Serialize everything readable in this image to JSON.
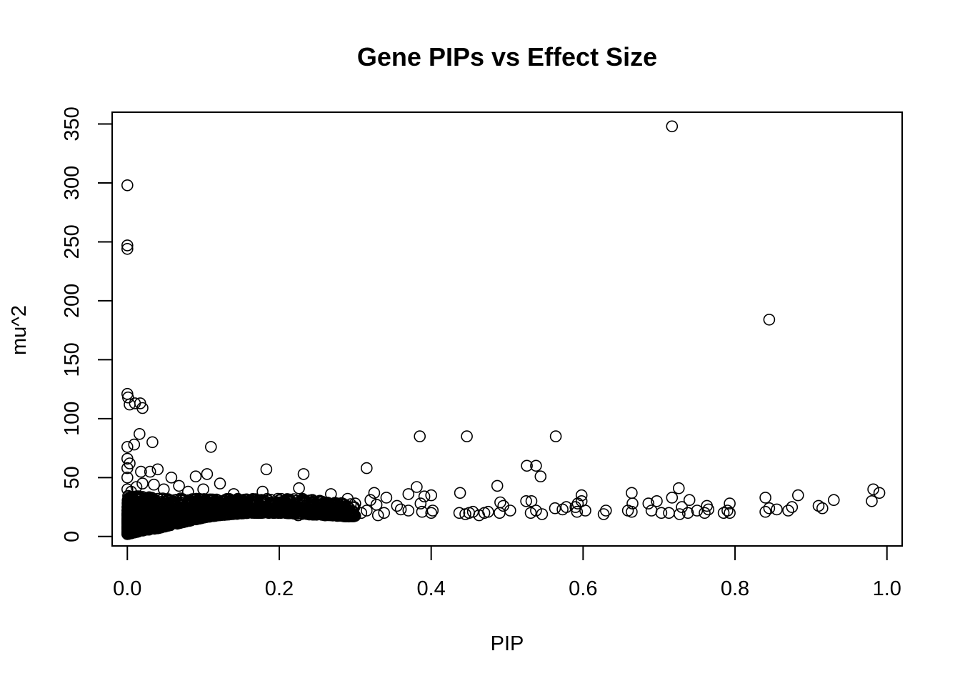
{
  "chart_data": {
    "type": "scatter",
    "title": "Gene PIPs vs Effect Size",
    "xlabel": "PIP",
    "ylabel": "mu^2",
    "xlim": [
      -0.02,
      1.02
    ],
    "ylim": [
      -8,
      360
    ],
    "x_ticks": [
      0.0,
      0.2,
      0.4,
      0.6,
      0.8,
      1.0
    ],
    "x_tick_labels": [
      "0.0",
      "0.2",
      "0.4",
      "0.6",
      "0.8",
      "1.0"
    ],
    "y_ticks": [
      0,
      50,
      100,
      150,
      200,
      250,
      300,
      350
    ],
    "y_tick_labels": [
      "0",
      "50",
      "100",
      "150",
      "200",
      "250",
      "300",
      "350"
    ],
    "grid": false,
    "legend": "none",
    "marker": "open-circle",
    "colors": {
      "marker": "#000000",
      "axis": "#000000",
      "background": "#ffffff"
    },
    "points": [
      [
        0.0,
        298
      ],
      [
        0.0,
        247
      ],
      [
        0.0,
        244
      ],
      [
        0.717,
        348
      ],
      [
        0.845,
        184
      ],
      [
        0.0,
        121
      ],
      [
        0.001,
        118
      ],
      [
        0.003,
        112
      ],
      [
        0.01,
        113
      ],
      [
        0.017,
        113
      ],
      [
        0.02,
        109
      ],
      [
        0.016,
        87
      ],
      [
        0.033,
        80
      ],
      [
        0.04,
        57
      ],
      [
        0.03,
        55
      ],
      [
        0.018,
        55
      ],
      [
        0.0,
        76
      ],
      [
        0.009,
        78
      ],
      [
        0.0,
        66
      ],
      [
        0.003,
        62
      ],
      [
        0.0,
        58
      ],
      [
        0.0,
        50
      ],
      [
        0.058,
        50
      ],
      [
        0.11,
        76
      ],
      [
        0.183,
        57
      ],
      [
        0.09,
        51
      ],
      [
        0.105,
        53
      ],
      [
        0.232,
        53
      ],
      [
        0.315,
        58
      ],
      [
        0.385,
        85
      ],
      [
        0.447,
        85
      ],
      [
        0.564,
        85
      ],
      [
        0.526,
        60
      ],
      [
        0.538,
        60
      ],
      [
        0.544,
        51
      ],
      [
        0.487,
        43
      ],
      [
        0.381,
        42
      ],
      [
        0.438,
        37
      ],
      [
        0.0,
        40
      ],
      [
        0.005,
        38
      ],
      [
        0.012,
        42
      ],
      [
        0.02,
        45
      ],
      [
        0.035,
        44
      ],
      [
        0.048,
        40
      ],
      [
        0.068,
        43
      ],
      [
        0.08,
        38
      ],
      [
        0.1,
        40
      ],
      [
        0.122,
        45
      ],
      [
        0.14,
        36
      ],
      [
        0.178,
        38
      ],
      [
        0.226,
        41
      ],
      [
        0.268,
        36
      ],
      [
        0.325,
        37
      ],
      [
        0.37,
        36
      ],
      [
        0.4,
        35
      ],
      [
        0.598,
        35
      ],
      [
        0.664,
        37
      ],
      [
        0.726,
        41
      ],
      [
        0.74,
        31
      ],
      [
        0.717,
        33
      ],
      [
        0.84,
        33
      ],
      [
        0.883,
        35
      ],
      [
        0.93,
        31
      ],
      [
        0.982,
        40
      ],
      [
        0.99,
        37
      ],
      [
        0.98,
        30
      ],
      [
        0.91,
        26
      ],
      [
        0.915,
        24
      ],
      [
        0.875,
        25
      ],
      [
        0.87,
        22
      ],
      [
        0.855,
        23
      ],
      [
        0.845,
        24
      ],
      [
        0.84,
        21
      ],
      [
        0.793,
        28
      ],
      [
        0.79,
        22
      ],
      [
        0.785,
        20
      ],
      [
        0.793,
        20
      ],
      [
        0.763,
        26
      ],
      [
        0.765,
        23
      ],
      [
        0.76,
        20
      ],
      [
        0.75,
        22
      ],
      [
        0.738,
        20
      ],
      [
        0.73,
        25
      ],
      [
        0.727,
        19
      ],
      [
        0.713,
        20
      ],
      [
        0.703,
        20
      ],
      [
        0.697,
        30
      ],
      [
        0.69,
        22
      ],
      [
        0.686,
        28
      ],
      [
        0.665,
        28
      ],
      [
        0.664,
        21
      ],
      [
        0.659,
        22
      ],
      [
        0.63,
        22
      ],
      [
        0.627,
        19
      ],
      [
        0.598,
        30
      ],
      [
        0.593,
        28
      ],
      [
        0.592,
        21
      ],
      [
        0.603,
        22
      ],
      [
        0.59,
        25
      ],
      [
        0.578,
        25
      ],
      [
        0.573,
        23
      ],
      [
        0.563,
        24
      ],
      [
        0.546,
        19
      ],
      [
        0.538,
        22
      ],
      [
        0.531,
        20
      ],
      [
        0.532,
        30
      ],
      [
        0.525,
        30
      ],
      [
        0.504,
        22
      ],
      [
        0.495,
        26
      ],
      [
        0.491,
        29
      ],
      [
        0.49,
        20
      ],
      [
        0.475,
        21
      ],
      [
        0.47,
        20
      ],
      [
        0.463,
        18
      ],
      [
        0.455,
        21
      ],
      [
        0.45,
        20
      ],
      [
        0.445,
        19
      ],
      [
        0.437,
        20
      ],
      [
        0.4,
        20
      ],
      [
        0.402,
        22
      ],
      [
        0.388,
        21
      ],
      [
        0.386,
        28
      ],
      [
        0.391,
        34
      ],
      [
        0.37,
        22
      ],
      [
        0.36,
        23
      ],
      [
        0.355,
        26
      ],
      [
        0.341,
        33
      ],
      [
        0.338,
        20
      ],
      [
        0.33,
        18
      ],
      [
        0.328,
        27
      ],
      [
        0.32,
        31
      ],
      [
        0.315,
        22
      ],
      [
        0.308,
        20
      ],
      [
        0.3,
        28
      ],
      [
        0.296,
        18
      ],
      [
        0.29,
        32
      ],
      [
        0.285,
        25
      ],
      [
        0.276,
        19
      ],
      [
        0.262,
        22
      ],
      [
        0.25,
        24
      ],
      [
        0.245,
        30
      ],
      [
        0.238,
        21
      ],
      [
        0.225,
        18
      ]
    ],
    "dense_region": {
      "description_free": true,
      "x_range": [
        0.0,
        0.3
      ],
      "y_min": [
        2,
        5,
        7,
        10,
        13,
        16,
        18,
        19,
        20,
        20,
        20,
        19,
        18,
        17
      ],
      "y_max": [
        35,
        34,
        33,
        33,
        32,
        32,
        32,
        32,
        32,
        32,
        32,
        32,
        30,
        28
      ],
      "x_knots": [
        0.0,
        0.02,
        0.04,
        0.06,
        0.08,
        0.1,
        0.12,
        0.14,
        0.16,
        0.18,
        0.2,
        0.23,
        0.26,
        0.29
      ],
      "count": 1800
    }
  }
}
